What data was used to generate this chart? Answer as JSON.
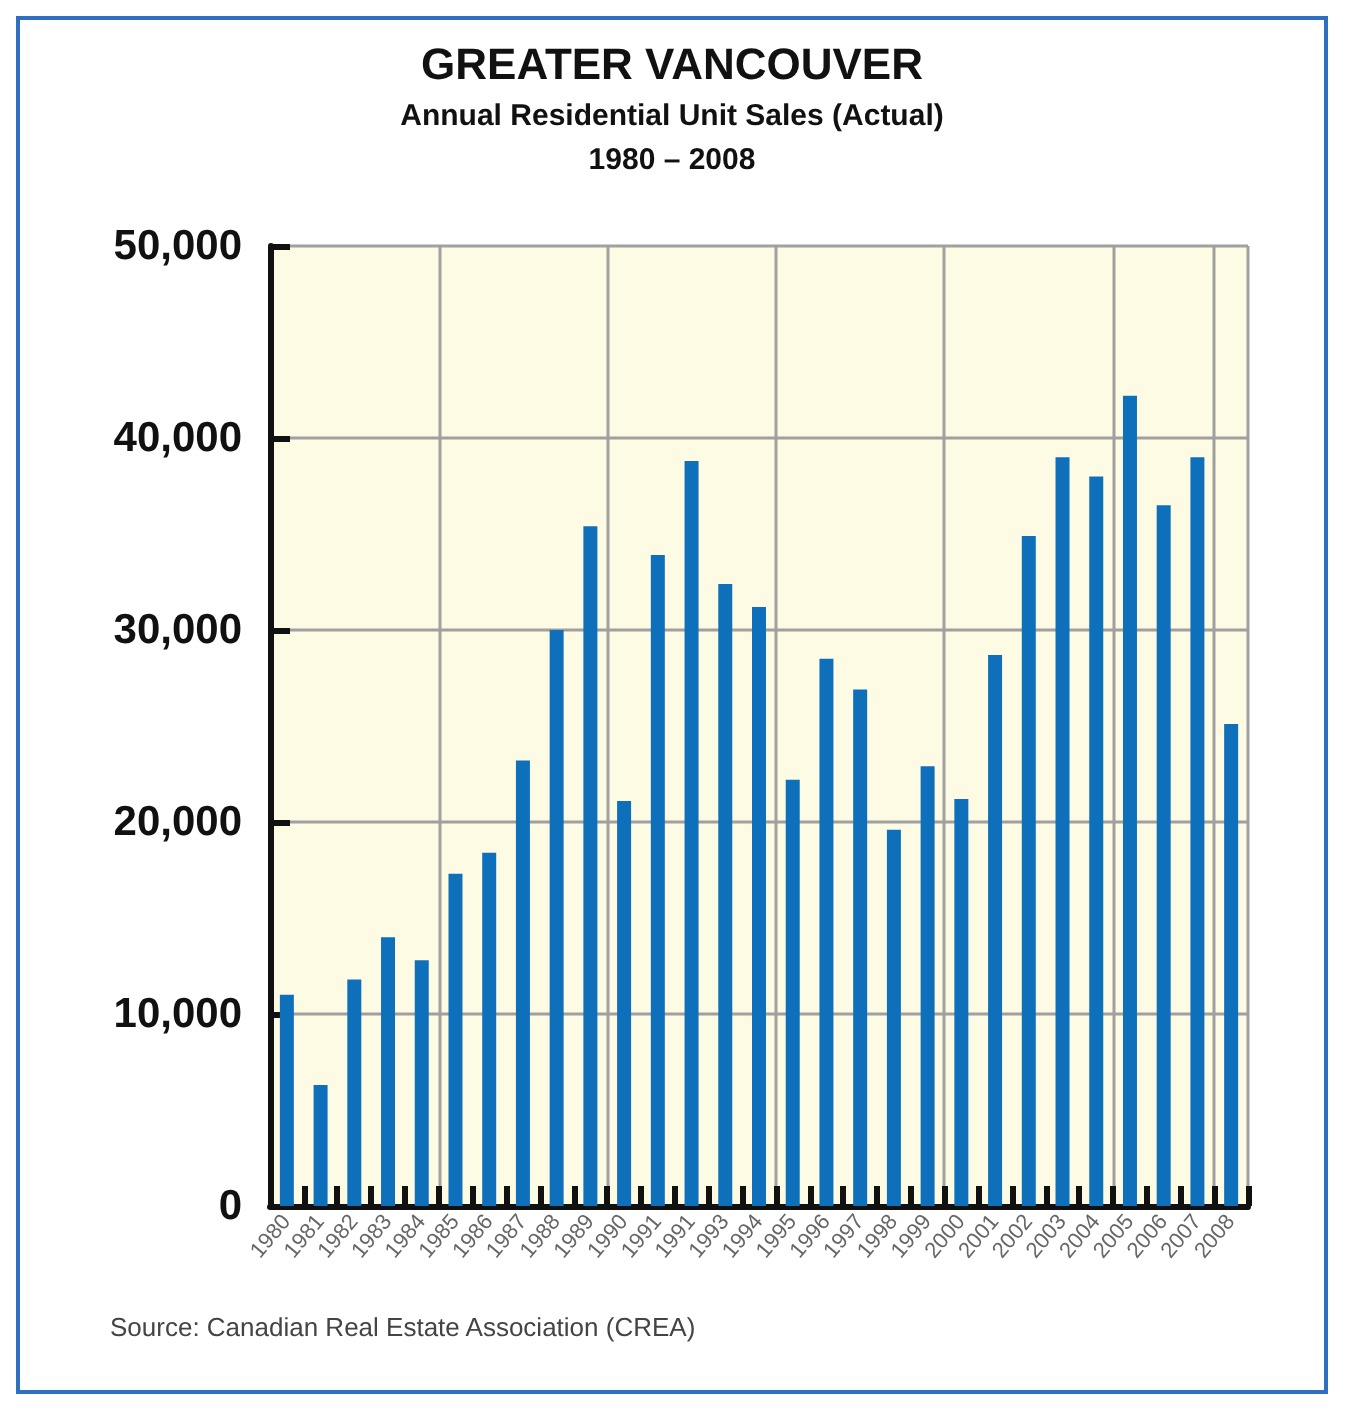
{
  "chart_data": {
    "type": "bar",
    "title": "GREATER VANCOUVER",
    "subtitle": "Annual Residential Unit Sales (Actual)\n1980 – 2008",
    "categories": [
      "1980",
      "1981",
      "1982",
      "1983",
      "1984",
      "1985",
      "1986",
      "1987",
      "1988",
      "1989",
      "1990",
      "1991",
      "1991",
      "1993",
      "1994",
      "1995",
      "1996",
      "1997",
      "1998",
      "1999",
      "2000",
      "2001",
      "2002",
      "2003",
      "2004",
      "2005",
      "2006",
      "2007",
      "2008"
    ],
    "values": [
      11000,
      6300,
      11800,
      14000,
      12800,
      17300,
      18400,
      23200,
      30000,
      35400,
      21100,
      33900,
      38800,
      32400,
      31200,
      22200,
      28500,
      26900,
      19600,
      22900,
      21200,
      28700,
      34900,
      39000,
      38000,
      42200,
      36500,
      39000,
      25100
    ],
    "color": "#0e70bb",
    "ylim": [
      0,
      50000
    ],
    "yticks": [
      0,
      {
        "value": 10000,
        "label": "10,000"
      },
      {
        "value": 20000,
        "label": "20,000"
      },
      {
        "value": 30000,
        "label": "30,000"
      },
      {
        "value": 40000,
        "label": "40,000"
      },
      {
        "value": 50000,
        "label": "50,000"
      }
    ],
    "grid": true,
    "annotations": [
      "Source: Canadian Real Estate Association (CREA)"
    ]
  }
}
